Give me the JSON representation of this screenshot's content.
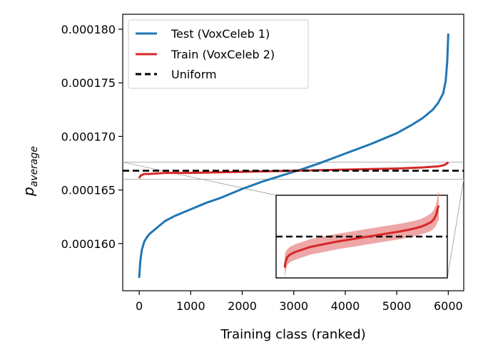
{
  "chart_data": {
    "type": "line",
    "xlabel": "Training class (ranked)",
    "ylabel": {
      "main": "p",
      "sub": "average"
    },
    "xlim": [
      -320,
      6300
    ],
    "ylim": [
      0.0001556,
      0.0001814
    ],
    "xticks": [
      0,
      1000,
      2000,
      3000,
      4000,
      5000,
      6000
    ],
    "xtick_labels": [
      "0",
      "1000",
      "2000",
      "3000",
      "4000",
      "5000",
      "6000"
    ],
    "yticks": [
      0.00016,
      0.000165,
      0.00017,
      0.000175,
      0.00018
    ],
    "ytick_labels": [
      "0.000160",
      "0.000165",
      "0.000170",
      "0.000175",
      "0.000180"
    ],
    "grid": false,
    "legend_position": "top-left",
    "series": [
      {
        "name": "Test (VoxCeleb 1)",
        "color": "#1f77b4",
        "style": "solid",
        "x": [
          0,
          20,
          50,
          100,
          150,
          200,
          300,
          400,
          500,
          700,
          1000,
          1300,
          1600,
          2000,
          2400,
          2800,
          3000,
          3200,
          3500,
          4000,
          4500,
          5000,
          5300,
          5500,
          5700,
          5800,
          5900,
          5950,
          5980,
          6000
        ],
        "y": [
          0.0001568,
          0.0001583,
          0.0001594,
          0.0001602,
          0.0001606,
          0.0001609,
          0.0001613,
          0.0001617,
          0.0001621,
          0.0001626,
          0.0001632,
          0.0001638,
          0.0001643,
          0.0001651,
          0.0001658,
          0.0001664,
          0.0001667,
          0.000167,
          0.0001675,
          0.0001684,
          0.0001693,
          0.0001703,
          0.0001711,
          0.0001717,
          0.0001725,
          0.0001731,
          0.000174,
          0.0001752,
          0.000177,
          0.0001796
        ]
      },
      {
        "name": "Train (VoxCeleb 2)",
        "color": "#d62728",
        "style": "solid",
        "x": [
          0,
          20,
          50,
          100,
          200,
          500,
          1000,
          2000,
          3000,
          4000,
          5000,
          5500,
          5800,
          5900,
          5950,
          5980,
          6000
        ],
        "y": [
          0.0001661,
          0.0001663,
          0.0001664,
          0.0001665,
          0.0001665,
          0.0001666,
          0.0001666,
          0.0001667,
          0.0001668,
          0.0001669,
          0.000167,
          0.0001671,
          0.0001672,
          0.0001673,
          0.0001674,
          0.0001675,
          0.0001676
        ]
      },
      {
        "name": "Uniform",
        "color": "#000000",
        "style": "dashed",
        "x": [
          -320,
          6300
        ],
        "y": [
          0.0001668,
          0.0001668
        ]
      }
    ],
    "inset": {
      "ylim": [
        0.000166,
        0.0001676
      ],
      "uniform_y": 0.0001668,
      "train_color": "#d62728",
      "band_color": "#e88a8a",
      "x": [
        0,
        30,
        100,
        200,
        400,
        700,
        1000,
        1500,
        2000,
        2500,
        3000,
        3500,
        4000,
        4500,
        5000,
        5300,
        5500,
        5700,
        5800,
        5880,
        5920,
        5960,
        6000
      ],
      "y": [
        0.0001662,
        0.0001663,
        0.0001664,
        0.00016645,
        0.0001665,
        0.00016655,
        0.0001666,
        0.00016665,
        0.0001667,
        0.00016674,
        0.00016678,
        0.00016682,
        0.00016686,
        0.0001669,
        0.00016695,
        0.00016699,
        0.00016703,
        0.00016708,
        0.00016713,
        0.0001672,
        0.00016726,
        0.00016735,
        0.0001674
      ],
      "band": [
        2e-07,
        2e-07,
        1.5e-07,
        1.5e-07,
        1.5e-07,
        1.5e-07,
        1.5e-07,
        1.5e-07,
        1.5e-07,
        1.5e-07,
        1.5e-07,
        1.5e-07,
        1.5e-07,
        1.5e-07,
        1.5e-07,
        1.5e-07,
        1.6e-07,
        1.7e-07,
        1.8e-07,
        2e-07,
        2.2e-07,
        2.5e-07,
        3e-07
      ]
    }
  }
}
